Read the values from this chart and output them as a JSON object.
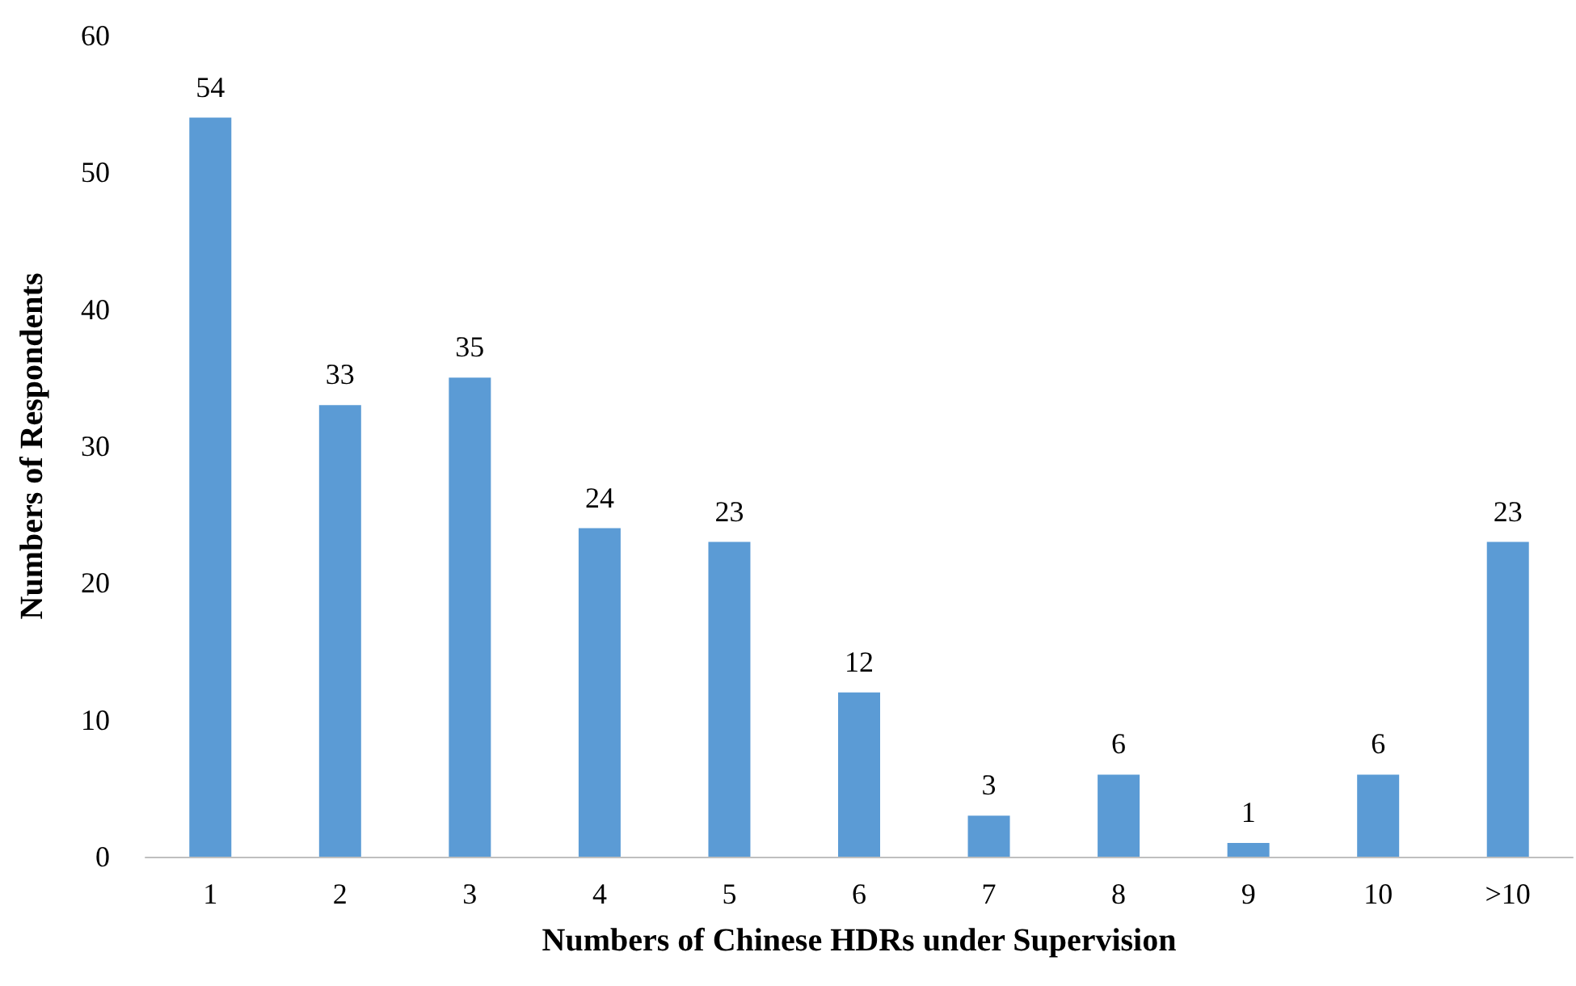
{
  "chart_data": {
    "type": "bar",
    "xlabel": "Numbers of Chinese HDRs under Supervision",
    "ylabel": "Numbers of Respondents",
    "categories": [
      "1",
      "2",
      "3",
      "4",
      "5",
      "6",
      "7",
      "8",
      "9",
      "10",
      ">10"
    ],
    "values": [
      54,
      33,
      35,
      24,
      23,
      12,
      3,
      6,
      1,
      6,
      23
    ],
    "color": "#5b9bd5",
    "ylim": [
      0,
      60
    ],
    "yticks": [
      0,
      10,
      20,
      30,
      40,
      50,
      60
    ],
    "grid": false,
    "data_labels": true
  }
}
